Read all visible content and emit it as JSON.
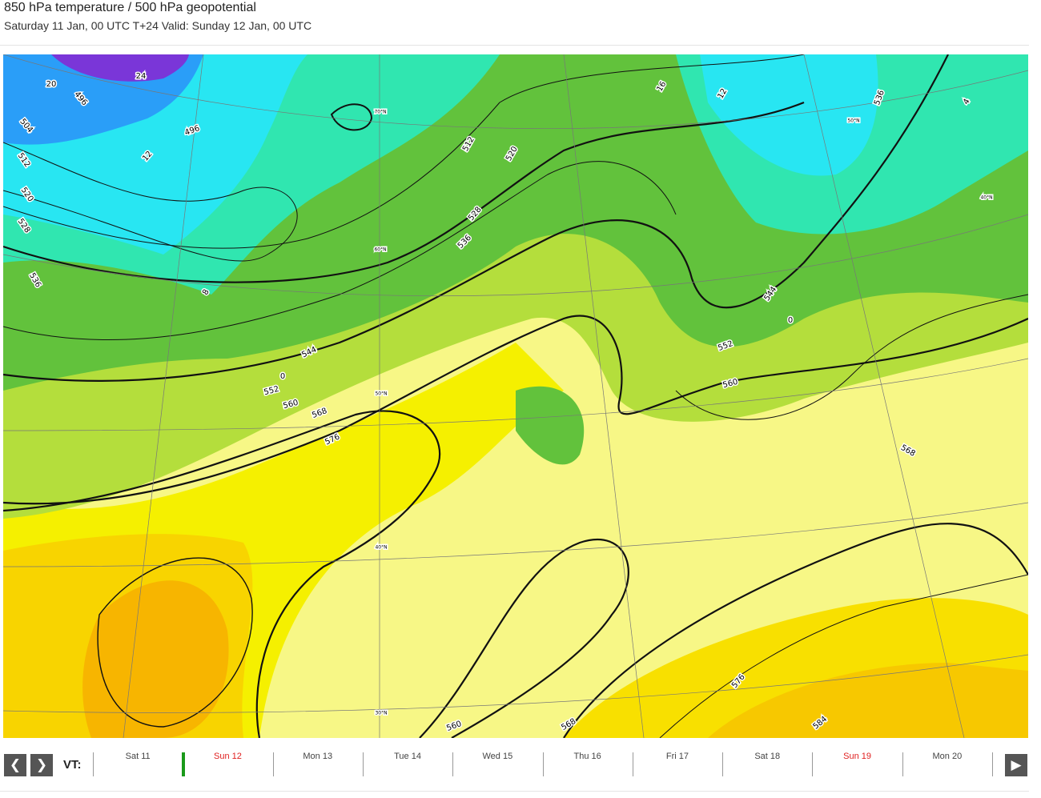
{
  "header": {
    "title": "850 hPa temperature / 500 hPa geopotential",
    "subtitle": "Saturday 11 Jan, 00 UTC T+24 Valid: Sunday 12 Jan, 00 UTC"
  },
  "map": {
    "contour_labels": [
      496,
      504,
      512,
      520,
      528,
      536,
      496,
      544,
      552,
      560,
      568,
      576,
      512,
      520,
      528,
      536,
      544,
      552,
      560,
      568,
      536,
      576,
      584,
      568,
      560
    ],
    "temperature_labels": [
      20,
      24,
      12,
      8,
      0,
      0,
      12,
      16,
      4
    ],
    "latitude_labels": [
      "70°N",
      "60°N",
      "50°N",
      "40°N",
      "30°N",
      "50°N",
      "40°N"
    ]
  },
  "timeline": {
    "label": "VT:",
    "selected": 1,
    "days": [
      {
        "label": "Sat 11",
        "weekend": false
      },
      {
        "label": "Sun 12",
        "weekend": true
      },
      {
        "label": "Mon 13",
        "weekend": false
      },
      {
        "label": "Tue 14",
        "weekend": false
      },
      {
        "label": "Wed 15",
        "weekend": false
      },
      {
        "label": "Thu 16",
        "weekend": false
      },
      {
        "label": "Fri 17",
        "weekend": false
      },
      {
        "label": "Sat 18",
        "weekend": false
      },
      {
        "label": "Sun 19",
        "weekend": true
      },
      {
        "label": "Mon 20",
        "weekend": false
      }
    ]
  }
}
